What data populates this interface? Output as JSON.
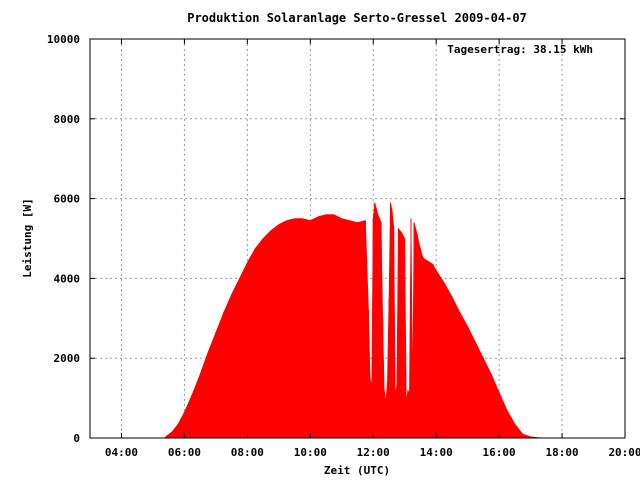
{
  "chart_data": {
    "type": "area",
    "title": "Produktion Solaranlage Serto-Gressel 2009-04-07",
    "xlabel": "Zeit (UTC)",
    "ylabel": "Leistung [W]",
    "annotation": "Tagesertrag: 38.15 kWh",
    "xlim": [
      3.0,
      20.0
    ],
    "ylim": [
      0,
      10000
    ],
    "x_ticks": [
      {
        "value": 4,
        "label": "04:00"
      },
      {
        "value": 6,
        "label": "06:00"
      },
      {
        "value": 8,
        "label": "08:00"
      },
      {
        "value": 10,
        "label": "10:00"
      },
      {
        "value": 12,
        "label": "12:00"
      },
      {
        "value": 14,
        "label": "14:00"
      },
      {
        "value": 16,
        "label": "16:00"
      },
      {
        "value": 18,
        "label": "18:00"
      },
      {
        "value": 20,
        "label": "20:00"
      }
    ],
    "y_ticks": [
      {
        "value": 0,
        "label": "0"
      },
      {
        "value": 2000,
        "label": "2000"
      },
      {
        "value": 4000,
        "label": "4000"
      },
      {
        "value": 6000,
        "label": "6000"
      },
      {
        "value": 8000,
        "label": "8000"
      },
      {
        "value": 10000,
        "label": "10000"
      }
    ],
    "grid": true,
    "color": "#ff0000",
    "series": [
      {
        "x": [
          5.4,
          5.6,
          5.8,
          6.0,
          6.25,
          6.5,
          6.75,
          7.0,
          7.25,
          7.5,
          7.75,
          8.0,
          8.25,
          8.5,
          8.75,
          9.0,
          9.25,
          9.5,
          9.75,
          10.0,
          10.25,
          10.5,
          10.75,
          11.0,
          11.25,
          11.5,
          11.75,
          11.85,
          11.9,
          11.95,
          12.0,
          12.05,
          12.1,
          12.15,
          12.25,
          12.3,
          12.35,
          12.4,
          12.45,
          12.5,
          12.55,
          12.6,
          12.65,
          12.7,
          12.75,
          12.8,
          12.9,
          13.0,
          13.05,
          13.1,
          13.15,
          13.2,
          13.25,
          13.3,
          13.35,
          13.4,
          13.45,
          13.5,
          13.55,
          13.6,
          13.7,
          13.8,
          13.9,
          14.0,
          14.25,
          14.5,
          14.75,
          15.0,
          15.25,
          15.5,
          15.75,
          16.0,
          16.25,
          16.5,
          16.75,
          17.0,
          17.25,
          17.5
        ],
        "values": [
          30,
          150,
          350,
          650,
          1100,
          1600,
          2150,
          2650,
          3150,
          3600,
          4000,
          4400,
          4750,
          5000,
          5200,
          5350,
          5450,
          5500,
          5500,
          5450,
          5550,
          5600,
          5600,
          5500,
          5450,
          5400,
          5450,
          3200,
          1500,
          1300,
          5500,
          5900,
          5750,
          5600,
          5400,
          3000,
          1200,
          900,
          1400,
          3500,
          5900,
          5700,
          5300,
          1100,
          1300,
          5250,
          5150,
          5000,
          900,
          1200,
          1100,
          5500,
          1300,
          5400,
          5250,
          5100,
          4900,
          4750,
          4600,
          4500,
          4450,
          4400,
          4350,
          4200,
          3900,
          3550,
          3150,
          2800,
          2400,
          2000,
          1600,
          1150,
          700,
          350,
          100,
          30,
          10,
          0
        ]
      }
    ]
  }
}
